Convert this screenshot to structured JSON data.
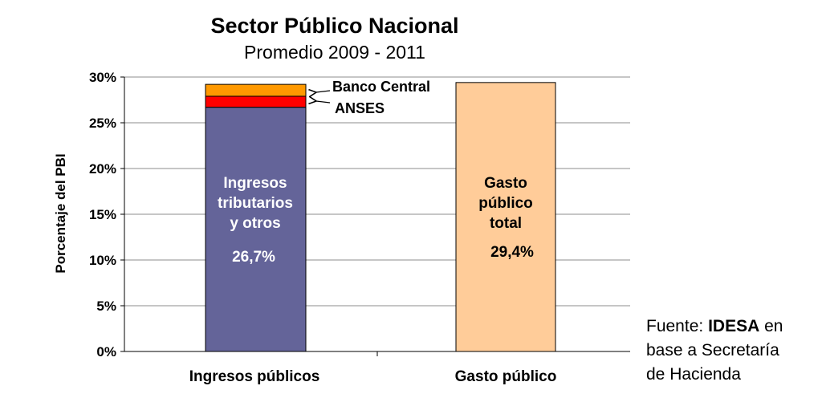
{
  "chart_data": {
    "type": "bar",
    "title": "Sector Público Nacional",
    "subtitle": "Promedio 2009 - 2011",
    "ylabel": "Porcentaje del PBI",
    "xlabel": "",
    "ylim": [
      0,
      30
    ],
    "yticks": [
      "0%",
      "5%",
      "10%",
      "15%",
      "20%",
      "25%",
      "30%"
    ],
    "ytick_values": [
      0,
      5,
      10,
      15,
      20,
      25,
      30
    ],
    "grid": true,
    "categories": [
      "Ingresos públicos",
      "Gasto público"
    ],
    "series": [
      {
        "category": "Ingresos públicos",
        "name": "Ingresos tributarios y otros",
        "value": 26.7,
        "color": "#646499"
      },
      {
        "category": "Ingresos públicos",
        "name": "ANSES",
        "value": 1.2,
        "color": "#ff0000"
      },
      {
        "category": "Ingresos públicos",
        "name": "Banco Central",
        "value": 1.3,
        "color": "#ff9900"
      },
      {
        "category": "Gasto público",
        "name": "Gasto público total",
        "value": 29.4,
        "color": "#ffcc99"
      }
    ],
    "bar_labels": {
      "ingresos": [
        "Ingresos",
        "tributarios",
        "y otros"
      ],
      "ingresos_value": "26,7%",
      "gasto": [
        "Gasto",
        "público",
        "total"
      ],
      "gasto_value": "29,4%"
    },
    "annotations": [
      "Banco Central",
      "ANSES"
    ]
  },
  "source": {
    "prefix": "Fuente: ",
    "org": "IDESA",
    "suffix": " en",
    "line2": "base a Secretaría",
    "line3": "de Hacienda"
  }
}
